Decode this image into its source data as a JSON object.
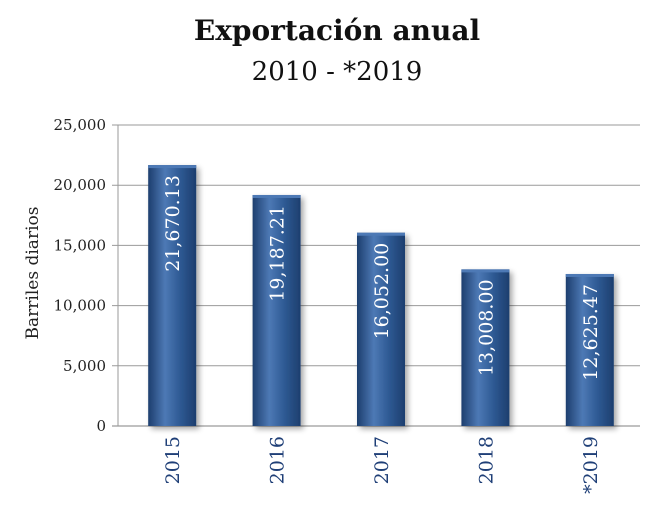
{
  "chart_data": {
    "type": "bar",
    "title": "Exportación anual",
    "subtitle": "2010 - *2019",
    "xlabel": "",
    "ylabel": "Barriles diarios",
    "categories": [
      "2015",
      "2016",
      "2017",
      "2018",
      "*2019"
    ],
    "values": [
      21670.13,
      19187.21,
      16052.0,
      13008.0,
      12625.47
    ],
    "data_labels": [
      "21,670.13",
      "19,187.21",
      "16,052.00",
      "13,008.00",
      "12,625.47"
    ],
    "yticks": [
      0,
      5000,
      10000,
      15000,
      20000,
      25000
    ],
    "ytick_labels": [
      "0",
      "5,000",
      "10,000",
      "15,000",
      "20,000",
      "25,000"
    ],
    "ylim": [
      0,
      25000
    ],
    "grid": true,
    "legend": "none",
    "colors": {
      "bar": "#2f5b95",
      "bar_light": "#4d79b5",
      "bar_dark": "#1d3e6e",
      "category_label": "#1f3f77",
      "grid": "#9a9a9a"
    }
  }
}
